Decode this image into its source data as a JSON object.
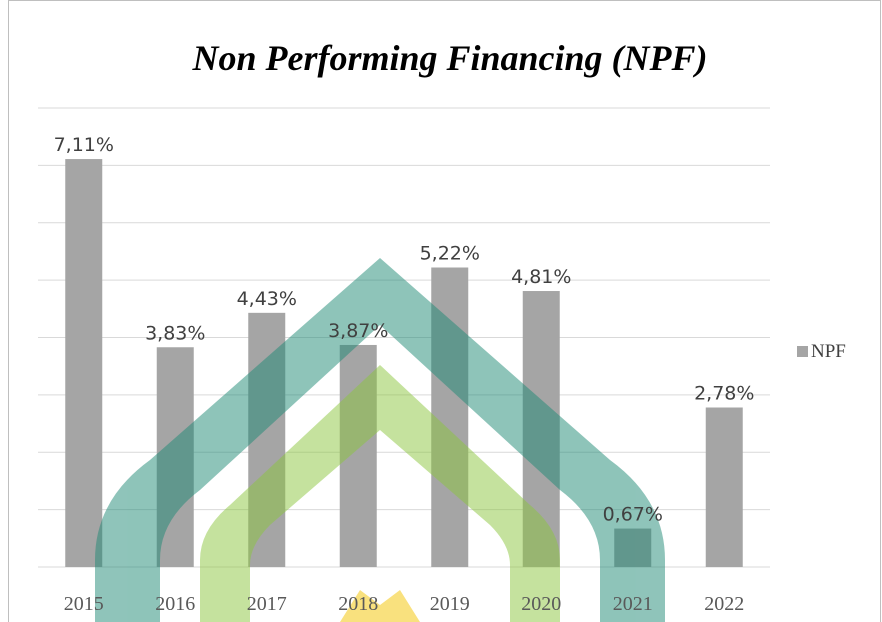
{
  "chart_data": {
    "type": "bar",
    "title": "Non Performing Financing (NPF)",
    "categories": [
      "2015",
      "2016",
      "2017",
      "2018",
      "2019",
      "2020",
      "2021",
      "2022"
    ],
    "series": [
      {
        "name": "NPF",
        "color": "#a5a5a5",
        "values": [
          7.11,
          3.83,
          4.43,
          3.87,
          5.22,
          4.81,
          0.67,
          2.78
        ],
        "value_labels": [
          "7,11%",
          "3,83%",
          "4,43%",
          "3,87%",
          "5,22%",
          "4,81%",
          "0,67%",
          "2,78%"
        ]
      }
    ],
    "ylim": [
      0,
      8
    ],
    "yticks": [
      0,
      1,
      2,
      3,
      4,
      5,
      6,
      7,
      8
    ],
    "grid": true,
    "legend": "right"
  }
}
